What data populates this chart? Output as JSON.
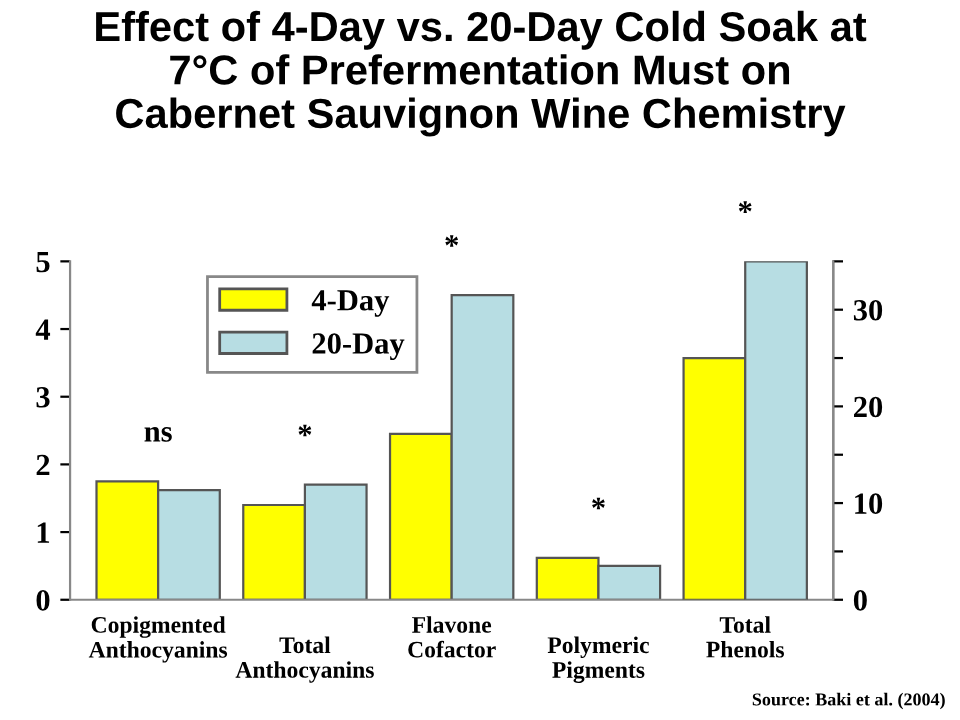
{
  "chart_data": {
    "type": "bar",
    "title": "Effect of 4-Day vs. 20-Day Cold Soak at\n7°C of Prefermentation Must on\nCabernet Sauvignon Wine Chemistry",
    "categories": [
      "Copigmented\nAnthocyanins",
      "Total\nAnthocyanins",
      "Flavone\nCofactor",
      "Polymeric\nPigments",
      "Total\nPhenols"
    ],
    "series": [
      {
        "name": "4-Day",
        "color": "#ffff00",
        "values": [
          1.75,
          1.4,
          2.45,
          0.62,
          null
        ]
      },
      {
        "name": "20-Day",
        "color": "#b7dde3",
        "values": [
          1.62,
          1.7,
          4.5,
          0.5,
          null
        ]
      },
      {
        "color": "#ffff00",
        "axis": "y2",
        "values": [
          null,
          null,
          null,
          null,
          25
        ]
      },
      {
        "color": "#b7dde3",
        "axis": "y2",
        "values": [
          null,
          null,
          null,
          null,
          35
        ]
      }
    ],
    "ylim": [
      0,
      5
    ],
    "yticks": [
      0,
      1,
      2,
      3,
      4,
      5
    ],
    "y2lim": [
      0,
      35
    ],
    "y2ticks": [
      0,
      {
        "value": 5,
        "label": null
      },
      10,
      {
        "value": 15,
        "label": null
      },
      20,
      {
        "value": 25,
        "label": null
      },
      30,
      {
        "value": 35,
        "label": null
      }
    ],
    "annotations": [
      "ns",
      "*",
      "*",
      "*",
      "*",
      "Source: Baki et al. (2004)"
    ],
    "legend": "top left",
    "grid": false
  }
}
